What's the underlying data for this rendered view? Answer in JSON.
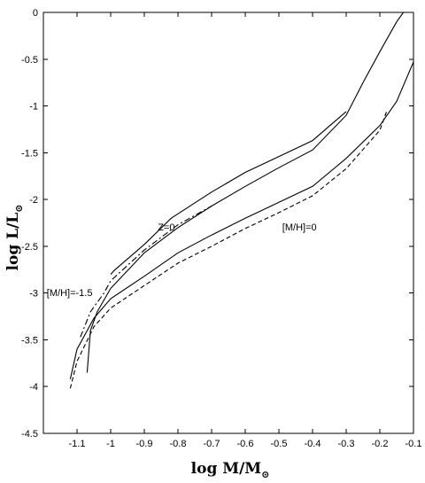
{
  "chart_data": {
    "type": "line",
    "title": "",
    "xlabel": "log M/M",
    "xlabel_symbol": "⊙",
    "ylabel": "log L/L",
    "ylabel_symbol": "⊙",
    "xlim": [
      -1.2,
      -0.1
    ],
    "ylim": [
      -4.5,
      0
    ],
    "xticks": [
      -1.1,
      -1,
      -0.9,
      -0.8,
      -0.7,
      -0.6,
      -0.5,
      -0.4,
      -0.3,
      -0.2,
      -0.1
    ],
    "xtick_labels": [
      "-1.1",
      "-1",
      "-0.9",
      "-0.8",
      "-0.7",
      "-0.6",
      "-0.5",
      "-0.4",
      "-0.3",
      "-0.2",
      "-0.1"
    ],
    "yticks": [
      0,
      -0.5,
      -1,
      -1.5,
      -2,
      -2.5,
      -3,
      -3.5,
      -4,
      -4.5
    ],
    "ytick_labels": [
      "0",
      "-0.5",
      "-1",
      "-1.5",
      "-2",
      "-2.5",
      "-3",
      "-3.5",
      "-4",
      "-4.5"
    ],
    "grid": false,
    "legend": "none",
    "annotations": [
      {
        "text": "Z=0",
        "x": -0.86,
        "y": -2.33
      },
      {
        "text": "[M/H]=0",
        "x": -0.49,
        "y": -2.33
      },
      {
        "text": "[M/H]=-1.5",
        "x": -1.19,
        "y": -3.03
      }
    ],
    "series": [
      {
        "style": "solid",
        "points": [
          [
            -1.0,
            -2.8
          ],
          [
            -0.99,
            -2.76
          ],
          [
            -0.9,
            -2.48
          ],
          [
            -0.82,
            -2.2
          ],
          [
            -0.7,
            -1.92
          ],
          [
            -0.6,
            -1.71
          ],
          [
            -0.5,
            -1.54
          ],
          [
            -0.4,
            -1.37
          ],
          [
            -0.3,
            -1.06
          ]
        ]
      },
      {
        "style": "solid",
        "points": [
          [
            -1.07,
            -3.85
          ],
          [
            -1.06,
            -3.4
          ],
          [
            -1.04,
            -3.2
          ],
          [
            -1.0,
            -2.95
          ],
          [
            -0.9,
            -2.57
          ],
          [
            -0.8,
            -2.3
          ],
          [
            -0.7,
            -2.07
          ],
          [
            -0.6,
            -1.86
          ],
          [
            -0.5,
            -1.66
          ],
          [
            -0.4,
            -1.47
          ],
          [
            -0.3,
            -1.1
          ],
          [
            -0.25,
            -0.75
          ],
          [
            -0.2,
            -0.42
          ],
          [
            -0.15,
            -0.1
          ],
          [
            -0.13,
            0.0
          ]
        ]
      },
      {
        "style": "solid",
        "points": [
          [
            -1.12,
            -3.92
          ],
          [
            -1.1,
            -3.6
          ],
          [
            -1.05,
            -3.27
          ],
          [
            -1.0,
            -3.06
          ],
          [
            -0.9,
            -2.82
          ],
          [
            -0.8,
            -2.57
          ],
          [
            -0.7,
            -2.38
          ],
          [
            -0.6,
            -2.2
          ],
          [
            -0.5,
            -2.03
          ],
          [
            -0.4,
            -1.86
          ],
          [
            -0.3,
            -1.56
          ],
          [
            -0.2,
            -1.21
          ],
          [
            -0.15,
            -0.95
          ],
          [
            -0.1,
            -0.53
          ]
        ]
      },
      {
        "style": "dashed",
        "points": [
          [
            -1.12,
            -4.02
          ],
          [
            -1.1,
            -3.73
          ],
          [
            -1.05,
            -3.36
          ],
          [
            -1.0,
            -3.16
          ],
          [
            -0.9,
            -2.92
          ],
          [
            -0.8,
            -2.68
          ],
          [
            -0.7,
            -2.5
          ],
          [
            -0.6,
            -2.31
          ],
          [
            -0.5,
            -2.14
          ],
          [
            -0.4,
            -1.96
          ],
          [
            -0.3,
            -1.67
          ],
          [
            -0.2,
            -1.26
          ],
          [
            -0.18,
            -1.06
          ]
        ]
      },
      {
        "style": "dashdot",
        "points": [
          [
            -1.09,
            -3.47
          ],
          [
            -1.06,
            -3.2
          ],
          [
            -1.02,
            -3.0
          ],
          [
            -1.0,
            -2.87
          ],
          [
            -0.9,
            -2.54
          ],
          [
            -0.8,
            -2.27
          ],
          [
            -0.7,
            -2.07
          ]
        ]
      }
    ]
  }
}
